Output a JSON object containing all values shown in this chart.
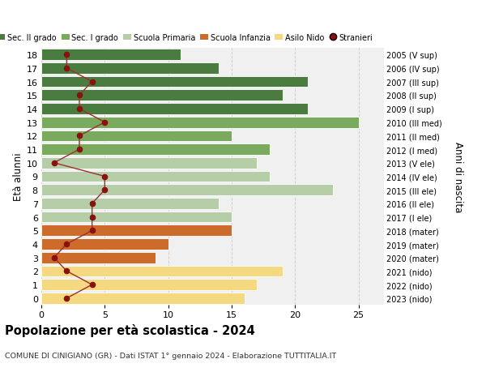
{
  "ages": [
    18,
    17,
    16,
    15,
    14,
    13,
    12,
    11,
    10,
    9,
    8,
    7,
    6,
    5,
    4,
    3,
    2,
    1,
    0
  ],
  "right_labels": [
    "2005 (V sup)",
    "2006 (IV sup)",
    "2007 (III sup)",
    "2008 (II sup)",
    "2009 (I sup)",
    "2010 (III med)",
    "2011 (II med)",
    "2012 (I med)",
    "2013 (V ele)",
    "2014 (IV ele)",
    "2015 (III ele)",
    "2016 (II ele)",
    "2017 (I ele)",
    "2018 (mater)",
    "2019 (mater)",
    "2020 (mater)",
    "2021 (nido)",
    "2022 (nido)",
    "2023 (nido)"
  ],
  "bar_values": [
    11,
    14,
    21,
    19,
    21,
    25,
    15,
    18,
    17,
    18,
    23,
    14,
    15,
    15,
    10,
    9,
    19,
    17,
    16
  ],
  "bar_colors": [
    "#4a7c3f",
    "#4a7c3f",
    "#4a7c3f",
    "#4a7c3f",
    "#4a7c3f",
    "#7aaa5e",
    "#7aaa5e",
    "#7aaa5e",
    "#b5cea8",
    "#b5cea8",
    "#b5cea8",
    "#b5cea8",
    "#b5cea8",
    "#cc6b2a",
    "#cc6b2a",
    "#cc6b2a",
    "#f5d980",
    "#f5d980",
    "#f5d980"
  ],
  "stranieri_values": [
    2,
    2,
    4,
    3,
    3,
    5,
    3,
    3,
    1,
    5,
    5,
    4,
    4,
    4,
    2,
    1,
    2,
    4,
    2
  ],
  "stranieri_color": "#8b1010",
  "stranieri_line_color": "#9b3030",
  "legend_items": [
    {
      "label": "Sec. II grado",
      "color": "#4a7c3f"
    },
    {
      "label": "Sec. I grado",
      "color": "#7aaa5e"
    },
    {
      "label": "Scuola Primaria",
      "color": "#b5cea8"
    },
    {
      "label": "Scuola Infanzia",
      "color": "#cc6b2a"
    },
    {
      "label": "Asilo Nido",
      "color": "#f5d980"
    },
    {
      "label": "Stranieri",
      "color": "#8b1010"
    }
  ],
  "title": "Popolazione per età scolastica - 2024",
  "subtitle": "COMUNE DI CINIGIANO (GR) - Dati ISTAT 1° gennaio 2024 - Elaborazione TUTTITALIA.IT",
  "ylabel_left": "Età alunni",
  "ylabel_right": "Anni di nascita",
  "xlim": [
    0,
    27
  ],
  "ylim": [
    -0.5,
    18.5
  ],
  "xticks": [
    0,
    5,
    10,
    15,
    20,
    25
  ],
  "background_color": "#ffffff",
  "plot_bg_color": "#f0f0f0",
  "grid_color": "#d0d0d0"
}
